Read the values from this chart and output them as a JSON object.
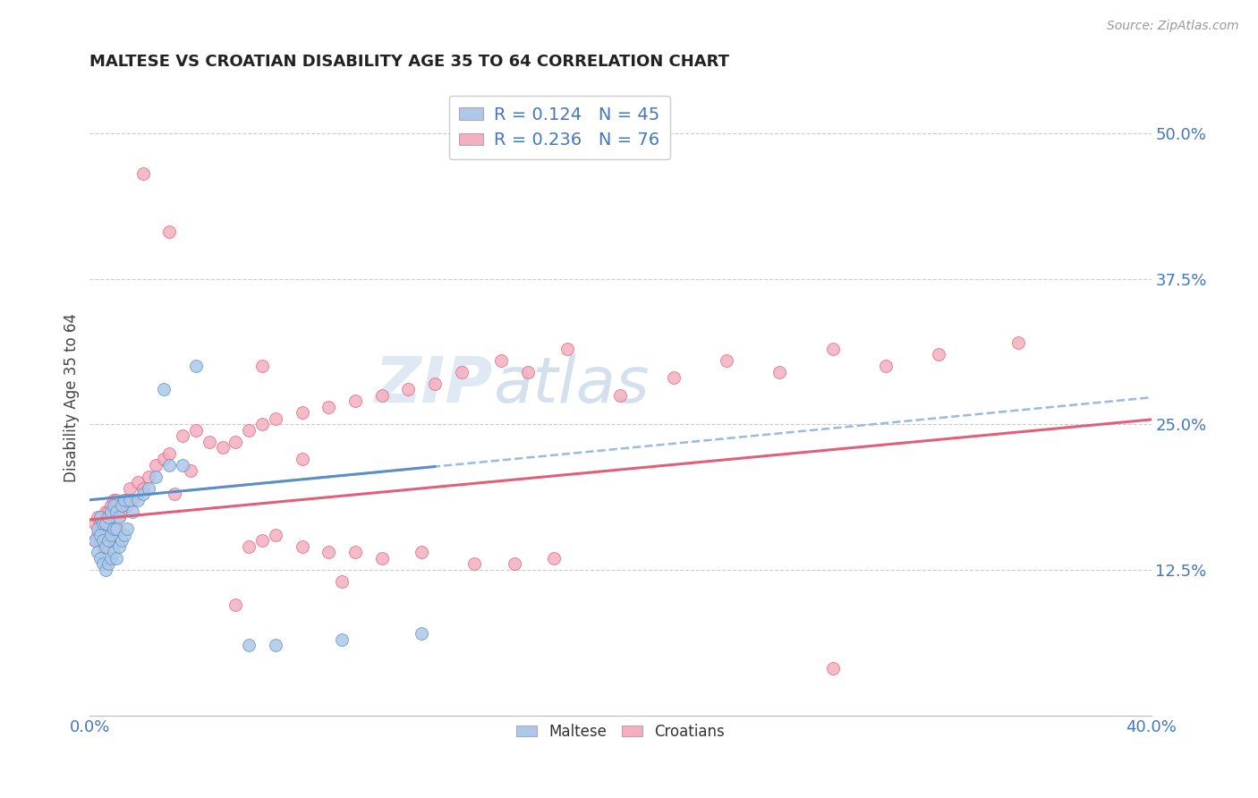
{
  "title": "MALTESE VS CROATIAN DISABILITY AGE 35 TO 64 CORRELATION CHART",
  "source": "Source: ZipAtlas.com",
  "ylabel": "Disability Age 35 to 64",
  "xlim": [
    0.0,
    0.4
  ],
  "ylim": [
    0.0,
    0.545
  ],
  "xtick_labels": [
    "0.0%",
    "40.0%"
  ],
  "xtick_positions": [
    0.0,
    0.4
  ],
  "ytick_labels": [
    "12.5%",
    "25.0%",
    "37.5%",
    "50.0%"
  ],
  "ytick_positions": [
    0.125,
    0.25,
    0.375,
    0.5
  ],
  "legend_r_n": [
    "R = 0.124   N = 45",
    "R = 0.236   N = 76"
  ],
  "maltese_color": "#adc8e8",
  "croatian_color": "#f5afc0",
  "maltese_edge_color": "#5b8fc7",
  "croatian_edge_color": "#e0607a",
  "maltese_line_color": "#5b8fc7",
  "croatian_line_color": "#e0607a",
  "dashed_line_color": "#99bbdd",
  "background_color": "#ffffff",
  "watermark_zip_color": "#c8d8e8",
  "watermark_atlas_color": "#aac0d8",
  "maltese_x": [
    0.002,
    0.003,
    0.003,
    0.004,
    0.004,
    0.004,
    0.005,
    0.005,
    0.005,
    0.006,
    0.006,
    0.006,
    0.007,
    0.007,
    0.007,
    0.008,
    0.008,
    0.008,
    0.009,
    0.009,
    0.009,
    0.01,
    0.01,
    0.01,
    0.011,
    0.011,
    0.012,
    0.012,
    0.013,
    0.013,
    0.014,
    0.015,
    0.016,
    0.018,
    0.02,
    0.022,
    0.025,
    0.028,
    0.03,
    0.035,
    0.04,
    0.06,
    0.07,
    0.095,
    0.125
  ],
  "maltese_y": [
    0.15,
    0.14,
    0.16,
    0.135,
    0.155,
    0.17,
    0.13,
    0.15,
    0.165,
    0.125,
    0.145,
    0.165,
    0.13,
    0.15,
    0.17,
    0.135,
    0.155,
    0.175,
    0.14,
    0.16,
    0.18,
    0.135,
    0.16,
    0.175,
    0.145,
    0.17,
    0.15,
    0.18,
    0.155,
    0.185,
    0.16,
    0.185,
    0.175,
    0.185,
    0.19,
    0.195,
    0.205,
    0.28,
    0.215,
    0.215,
    0.3,
    0.06,
    0.06,
    0.065,
    0.07
  ],
  "croatian_x": [
    0.002,
    0.002,
    0.003,
    0.003,
    0.004,
    0.004,
    0.005,
    0.005,
    0.006,
    0.006,
    0.007,
    0.007,
    0.008,
    0.008,
    0.009,
    0.009,
    0.01,
    0.01,
    0.011,
    0.012,
    0.013,
    0.014,
    0.015,
    0.016,
    0.018,
    0.02,
    0.022,
    0.025,
    0.028,
    0.03,
    0.032,
    0.035,
    0.038,
    0.04,
    0.045,
    0.05,
    0.055,
    0.06,
    0.065,
    0.07,
    0.08,
    0.09,
    0.1,
    0.11,
    0.12,
    0.13,
    0.14,
    0.155,
    0.165,
    0.18,
    0.2,
    0.22,
    0.24,
    0.26,
    0.28,
    0.3,
    0.32,
    0.35,
    0.06,
    0.065,
    0.07,
    0.08,
    0.09,
    0.1,
    0.11,
    0.125,
    0.145,
    0.16,
    0.175,
    0.28,
    0.02,
    0.03,
    0.055,
    0.065,
    0.08,
    0.095
  ],
  "croatian_y": [
    0.15,
    0.165,
    0.155,
    0.17,
    0.15,
    0.165,
    0.145,
    0.165,
    0.155,
    0.175,
    0.15,
    0.175,
    0.155,
    0.18,
    0.16,
    0.185,
    0.16,
    0.185,
    0.17,
    0.175,
    0.185,
    0.18,
    0.195,
    0.185,
    0.2,
    0.195,
    0.205,
    0.215,
    0.22,
    0.225,
    0.19,
    0.24,
    0.21,
    0.245,
    0.235,
    0.23,
    0.235,
    0.245,
    0.25,
    0.255,
    0.26,
    0.265,
    0.27,
    0.275,
    0.28,
    0.285,
    0.295,
    0.305,
    0.295,
    0.315,
    0.275,
    0.29,
    0.305,
    0.295,
    0.315,
    0.3,
    0.31,
    0.32,
    0.145,
    0.15,
    0.155,
    0.145,
    0.14,
    0.14,
    0.135,
    0.14,
    0.13,
    0.13,
    0.135,
    0.04,
    0.465,
    0.415,
    0.095,
    0.3,
    0.22,
    0.115
  ],
  "maltese_trend_intercept": 0.185,
  "maltese_trend_slope": 0.22,
  "croatian_trend_intercept": 0.168,
  "croatian_trend_slope": 0.215
}
